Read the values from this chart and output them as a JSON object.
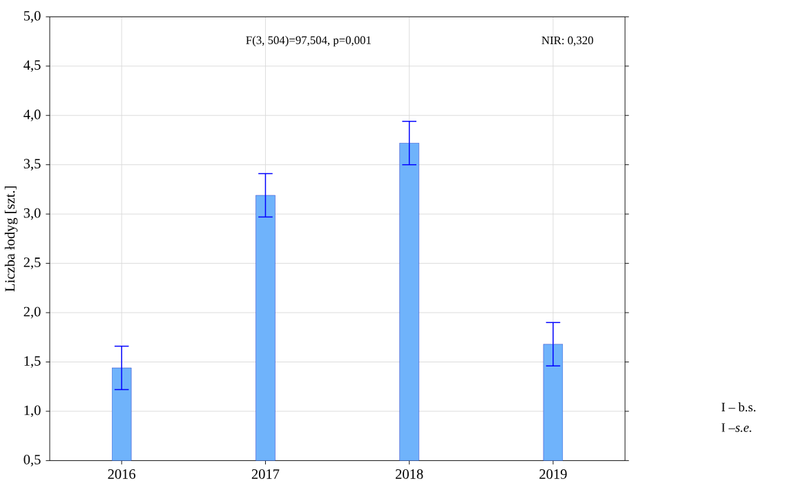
{
  "chart_data": {
    "type": "bar",
    "ylabel": "Liczba łodyg [szt.]",
    "categories": [
      "2016",
      "2017",
      "2018",
      "2019"
    ],
    "values": [
      1.44,
      3.19,
      3.72,
      1.68
    ],
    "errors": [
      0.22,
      0.22,
      0.22,
      0.22
    ],
    "color": "#6fb3fb",
    "ylim": [
      0.5,
      5.0
    ],
    "yticks": [
      {
        "value": 0.5,
        "label": "0,5"
      },
      {
        "value": 1.0,
        "label": "1,0"
      },
      {
        "value": 1.5,
        "label": "1,5"
      },
      {
        "value": 2.0,
        "label": "2,0"
      },
      {
        "value": 2.5,
        "label": "2,5"
      },
      {
        "value": 3.0,
        "label": "3,0"
      },
      {
        "value": 3.5,
        "label": "3,5"
      },
      {
        "value": 4.0,
        "label": "4,0"
      },
      {
        "value": 4.5,
        "label": "4,5"
      },
      {
        "value": 5.0,
        "label": "5,0"
      }
    ],
    "grid": true,
    "annotations": [
      "F(3, 504)=97,504, p=0,001",
      "NIR: 0,320",
      "I – b.s.",
      "I –*s.e.*"
    ]
  }
}
